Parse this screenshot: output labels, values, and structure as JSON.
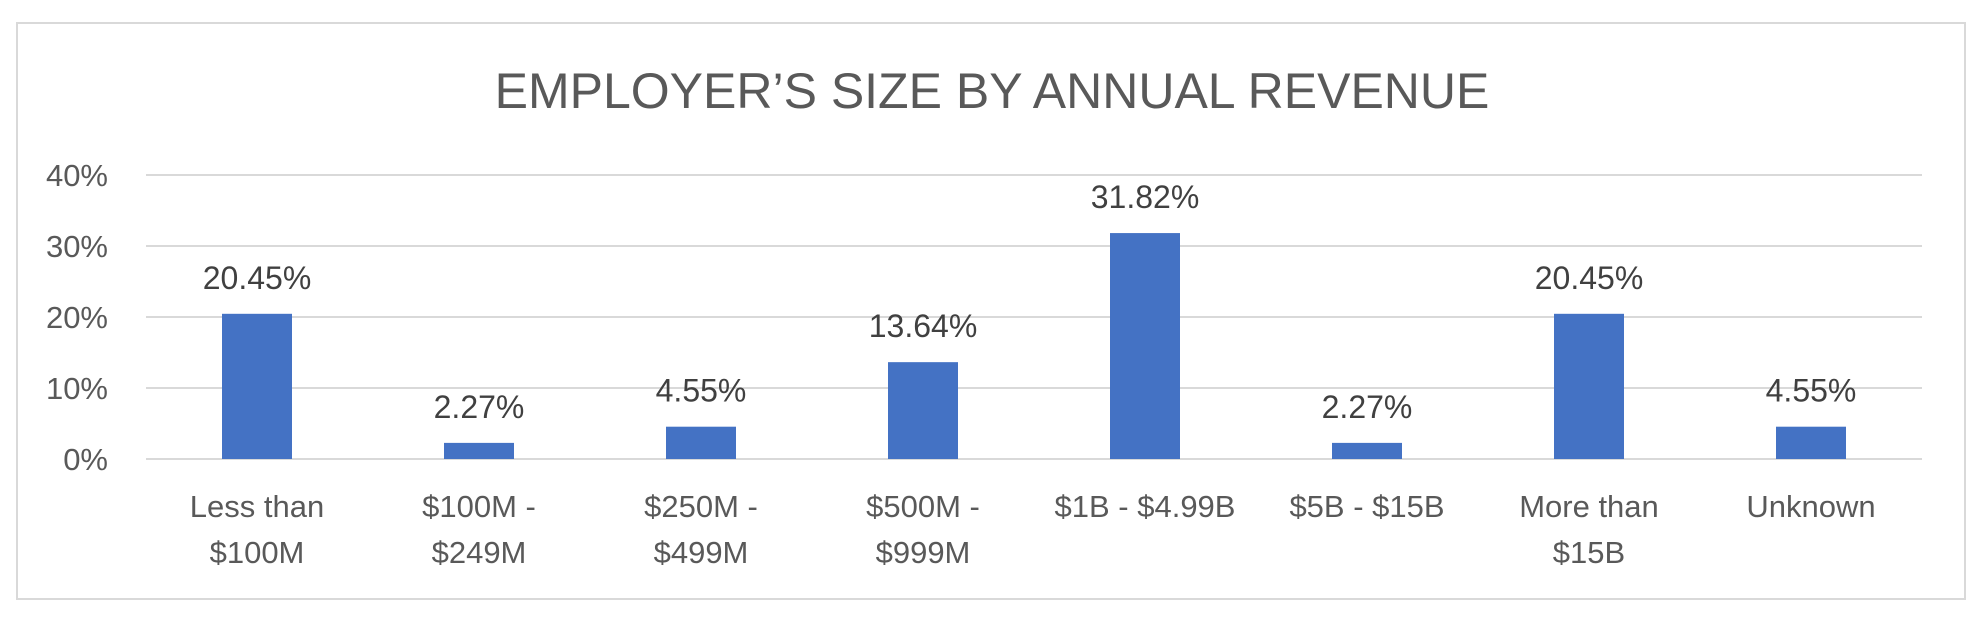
{
  "chart_data": {
    "type": "bar",
    "title": "EMPLOYER’S SIZE BY ANNUAL REVENUE",
    "xlabel": "",
    "ylabel": "",
    "categories": [
      [
        "Less than",
        "$100M"
      ],
      [
        "$100M -",
        "$249M"
      ],
      [
        "$250M -",
        "$499M"
      ],
      [
        "$500M -",
        "$999M"
      ],
      [
        "$1B - $4.99B"
      ],
      [
        "$5B - $15B"
      ],
      [
        "More than",
        "$15B"
      ],
      [
        "Unknown"
      ]
    ],
    "values": [
      20.45,
      2.27,
      4.55,
      13.64,
      31.82,
      2.27,
      20.45,
      4.55
    ],
    "data_labels": [
      "20.45%",
      "2.27%",
      "4.55%",
      "13.64%",
      "31.82%",
      "2.27%",
      "20.45%",
      "4.55%"
    ],
    "ylim": [
      0,
      40
    ],
    "yticks": [
      0,
      10,
      20,
      30,
      40
    ],
    "ytick_labels": [
      "0%",
      "10%",
      "20%",
      "30%",
      "40%"
    ],
    "grid": true,
    "legend": "none",
    "bar_color": "#4472c4"
  }
}
